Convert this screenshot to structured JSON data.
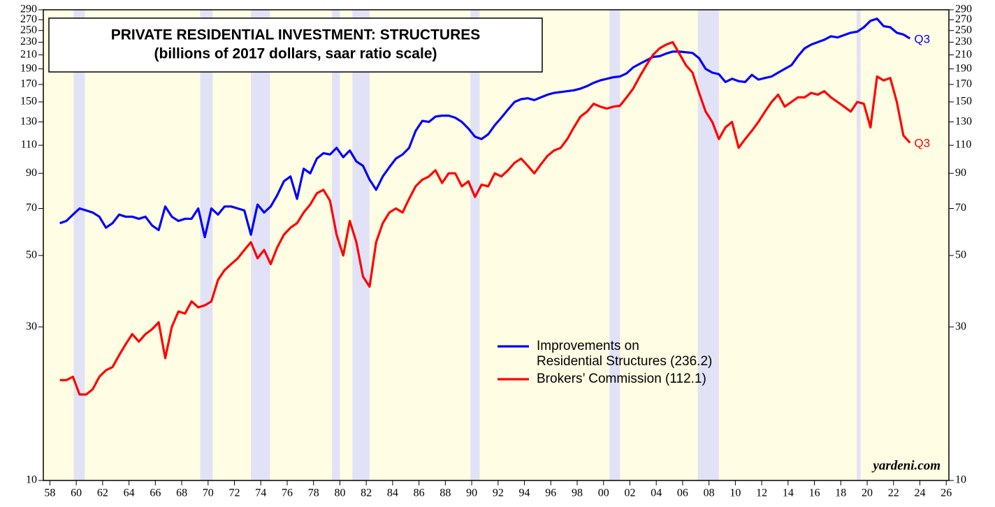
{
  "chart_data": {
    "type": "line",
    "title": "PRIVATE RESIDENTIAL INVESTMENT: STRUCTURES",
    "subtitle": "(billions of 2017 dollars, saar ratio scale)",
    "log_scale": true,
    "xlim": [
      1957.5,
      2026.2
    ],
    "ylim": [
      10,
      290
    ],
    "xticks": [
      {
        "value": 1958,
        "label": "58"
      },
      {
        "value": 1960,
        "label": "60"
      },
      {
        "value": 1962,
        "label": "62"
      },
      {
        "value": 1964,
        "label": "64"
      },
      {
        "value": 1966,
        "label": "66"
      },
      {
        "value": 1968,
        "label": "68"
      },
      {
        "value": 1970,
        "label": "70"
      },
      {
        "value": 1972,
        "label": "72"
      },
      {
        "value": 1974,
        "label": "74"
      },
      {
        "value": 1976,
        "label": "76"
      },
      {
        "value": 1978,
        "label": "78"
      },
      {
        "value": 1980,
        "label": "80"
      },
      {
        "value": 1982,
        "label": "82"
      },
      {
        "value": 1984,
        "label": "84"
      },
      {
        "value": 1986,
        "label": "86"
      },
      {
        "value": 1988,
        "label": "88"
      },
      {
        "value": 1990,
        "label": "90"
      },
      {
        "value": 1992,
        "label": "92"
      },
      {
        "value": 1994,
        "label": "94"
      },
      {
        "value": 1996,
        "label": "96"
      },
      {
        "value": 1998,
        "label": "98"
      },
      {
        "value": 2000,
        "label": "00"
      },
      {
        "value": 2002,
        "label": "02"
      },
      {
        "value": 2004,
        "label": "04"
      },
      {
        "value": 2006,
        "label": "06"
      },
      {
        "value": 2008,
        "label": "08"
      },
      {
        "value": 2010,
        "label": "10"
      },
      {
        "value": 2012,
        "label": "12"
      },
      {
        "value": 2014,
        "label": "14"
      },
      {
        "value": 2016,
        "label": "16"
      },
      {
        "value": 2018,
        "label": "18"
      },
      {
        "value": 2020,
        "label": "20"
      },
      {
        "value": 2022,
        "label": "22"
      },
      {
        "value": 2024,
        "label": "24"
      },
      {
        "value": 2026,
        "label": "26"
      }
    ],
    "yticks": [
      10,
      30,
      50,
      70,
      90,
      110,
      130,
      150,
      170,
      190,
      210,
      230,
      250,
      270,
      290
    ],
    "background": "#fffde3",
    "band_color": "#e2e2f7",
    "recession_bands": [
      [
        1959.8,
        1960.65
      ],
      [
        1969.4,
        1970.35
      ],
      [
        1973.25,
        1974.7
      ],
      [
        1979.4,
        1980.0
      ],
      [
        1980.95,
        1982.25
      ],
      [
        1989.9,
        1990.6
      ],
      [
        2000.45,
        2001.25
      ],
      [
        2007.15,
        2008.75
      ],
      [
        2019.2,
        2019.5
      ]
    ],
    "x": [
      1958.75,
      1959.25,
      1959.75,
      1960.25,
      1960.75,
      1961.25,
      1961.75,
      1962.25,
      1962.75,
      1963.25,
      1963.75,
      1964.25,
      1964.75,
      1965.25,
      1965.75,
      1966.25,
      1966.75,
      1967.25,
      1967.75,
      1968.25,
      1968.75,
      1969.25,
      1969.75,
      1970.25,
      1970.75,
      1971.25,
      1971.75,
      1972.25,
      1972.75,
      1973.25,
      1973.75,
      1974.25,
      1974.75,
      1975.25,
      1975.75,
      1976.25,
      1976.75,
      1977.25,
      1977.75,
      1978.25,
      1978.75,
      1979.25,
      1979.75,
      1980.25,
      1980.75,
      1981.25,
      1981.75,
      1982.25,
      1982.75,
      1983.25,
      1983.75,
      1984.25,
      1984.75,
      1985.25,
      1985.75,
      1986.25,
      1986.75,
      1987.25,
      1987.75,
      1988.25,
      1988.75,
      1989.25,
      1989.75,
      1990.25,
      1990.75,
      1991.25,
      1991.75,
      1992.25,
      1992.75,
      1993.25,
      1993.75,
      1994.25,
      1994.75,
      1995.25,
      1995.75,
      1996.25,
      1996.75,
      1997.25,
      1997.75,
      1998.25,
      1998.75,
      1999.25,
      1999.75,
      2000.25,
      2000.75,
      2001.25,
      2001.75,
      2002.25,
      2002.75,
      2003.25,
      2003.75,
      2004.25,
      2004.75,
      2005.25,
      2005.75,
      2006.25,
      2006.75,
      2007.25,
      2007.75,
      2008.25,
      2008.75,
      2009.25,
      2009.75,
      2010.25,
      2010.75,
      2011.25,
      2011.75,
      2012.25,
      2012.75,
      2013.25,
      2013.75,
      2014.25,
      2014.75,
      2015.25,
      2015.75,
      2016.25,
      2016.75,
      2017.25,
      2017.75,
      2018.25,
      2018.75,
      2019.25,
      2019.75,
      2020.25,
      2020.75,
      2021.25,
      2021.75,
      2022.25,
      2022.75,
      2023.25
    ],
    "series": [
      {
        "name": "Improvements on\nResidential Structures (236.2)",
        "color": "#0000ff",
        "end_label": "Q3",
        "values": [
          63,
          64,
          67,
          70,
          69,
          68,
          66,
          61,
          63,
          67,
          66,
          66,
          65,
          66,
          62,
          60,
          71,
          66,
          64,
          65,
          65,
          70,
          57,
          70,
          67,
          71,
          71,
          70,
          69,
          58,
          72,
          68,
          71,
          77,
          85,
          88,
          75,
          93,
          90,
          100,
          104,
          103,
          108,
          101,
          106,
          98,
          95,
          86,
          80,
          88,
          94,
          100,
          103,
          108,
          122,
          131,
          130,
          135,
          136,
          136,
          134,
          130,
          124,
          117,
          115,
          119,
          127,
          134,
          142,
          150,
          153,
          154,
          152,
          155,
          158,
          160,
          161,
          162,
          163,
          165,
          168,
          172,
          175,
          177,
          179,
          180,
          184,
          192,
          197,
          202,
          207,
          208,
          212,
          215,
          215,
          214,
          213,
          205,
          190,
          185,
          183,
          173,
          177,
          174,
          173,
          182,
          176,
          178,
          180,
          185,
          190,
          195,
          208,
          220,
          226,
          230,
          234,
          240,
          238,
          242,
          246,
          248,
          256,
          268,
          272,
          258,
          256,
          246,
          243,
          236.2
        ]
      },
      {
        "name": "Brokers’ Commission (112.1)",
        "color": "#ff0000",
        "end_label": "Q3",
        "values": [
          20.5,
          20.5,
          21,
          18.5,
          18.5,
          19.2,
          21,
          22,
          22.5,
          24.5,
          26.5,
          28.5,
          27,
          28.5,
          29.5,
          31,
          24,
          30,
          33.5,
          33,
          36,
          34.5,
          35,
          36,
          42,
          45,
          47,
          49,
          52,
          55,
          49,
          52,
          47,
          53,
          58,
          61,
          63,
          68,
          72,
          78,
          80,
          74,
          58,
          50,
          64,
          55,
          43,
          40,
          55,
          63,
          68,
          70,
          68,
          75,
          82,
          86,
          88,
          92,
          84,
          90,
          90,
          82,
          85,
          76,
          83,
          82,
          90,
          88,
          92,
          97,
          100,
          95,
          90,
          96,
          102,
          106,
          108,
          115,
          125,
          135,
          140,
          148,
          145,
          143,
          145,
          146,
          155,
          165,
          180,
          195,
          210,
          220,
          226,
          230,
          212,
          195,
          185,
          160,
          140,
          130,
          115,
          125,
          130,
          108,
          115,
          122,
          130,
          140,
          150,
          158,
          145,
          150,
          155,
          155,
          160,
          158,
          162,
          155,
          150,
          145,
          140,
          150,
          148,
          125,
          180,
          175,
          178,
          150,
          118,
          112.1
        ]
      }
    ],
    "source": "yardeni.com"
  }
}
